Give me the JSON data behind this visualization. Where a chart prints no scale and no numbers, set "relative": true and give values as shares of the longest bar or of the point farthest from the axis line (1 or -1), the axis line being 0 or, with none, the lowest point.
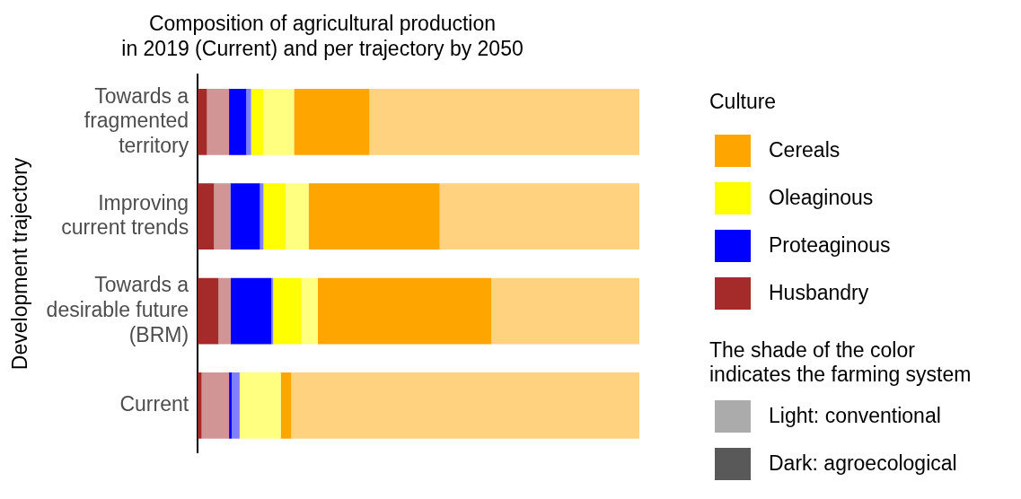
{
  "chart_data": {
    "type": "bar",
    "orientation": "horizontal",
    "stacked": true,
    "relative": true,
    "title": "Composition of agricultural production",
    "subtitle": "in 2019 (Current) and per trajectory by 2050",
    "ylabel": "Development trajectory",
    "legend_title": "Culture",
    "legend": "right",
    "tick_labels": "y",
    "categories": [
      "Towards a fragmented territory",
      "Improving current trends",
      "Towards a desirable future (BRM)",
      "Current"
    ],
    "series": [
      {
        "name": "Husbandry",
        "color": "#a52a2a",
        "values": [
          0.021,
          0.037,
          0.047,
          0.009
        ]
      },
      {
        "color": "#d29595",
        "values": [
          0.05,
          0.037,
          0.028,
          0.062
        ]
      },
      {
        "name": "Proteaginous",
        "color": "#0000ff",
        "values": [
          0.039,
          0.067,
          0.092,
          0.006
        ]
      },
      {
        "color": "#8080ff",
        "values": [
          0.011,
          0.008,
          0.004,
          0.018
        ]
      },
      {
        "name": "Oleaginous",
        "color": "#ffff00",
        "values": [
          0.027,
          0.05,
          0.064,
          0
        ]
      },
      {
        "color": "#ffff80",
        "values": [
          0.07,
          0.052,
          0.037,
          0.093
        ]
      },
      {
        "name": "Cereals",
        "color": "#ffa500",
        "values": [
          0.171,
          0.297,
          0.393,
          0.024
        ]
      },
      {
        "color": "#ffd280",
        "values": [
          0.611,
          0.452,
          0.335,
          0.788
        ]
      }
    ],
    "annotations": [
      "The shade of the color indicates the farming system",
      "Light: conventional",
      "Dark: agroecological"
    ]
  }
}
